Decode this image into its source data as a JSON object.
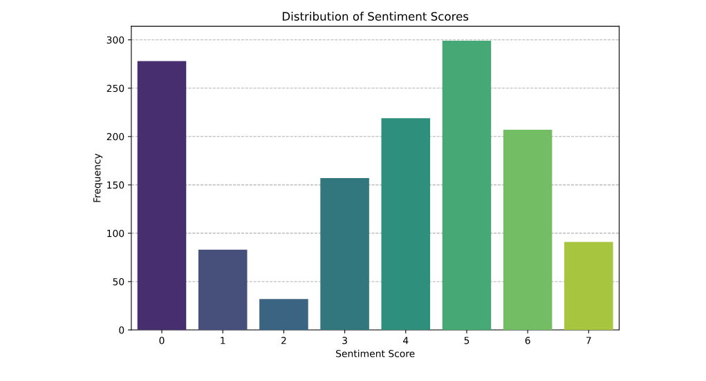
{
  "chart_data": {
    "type": "bar",
    "title": "Distribution of Sentiment Scores",
    "xlabel": "Sentiment Score",
    "ylabel": "Frequency",
    "categories": [
      "0",
      "1",
      "2",
      "3",
      "4",
      "5",
      "6",
      "7"
    ],
    "values": [
      278,
      83,
      32,
      157,
      219,
      299,
      207,
      91
    ],
    "colors": [
      "#472f6f",
      "#46507a",
      "#3b6482",
      "#33777e",
      "#2e8f7d",
      "#46a874",
      "#73bd65",
      "#a8c53f"
    ],
    "ylim": [
      0,
      314
    ],
    "yticks": [
      0,
      50,
      100,
      150,
      200,
      250,
      300
    ],
    "grid": "y",
    "line_style": "dashed"
  }
}
